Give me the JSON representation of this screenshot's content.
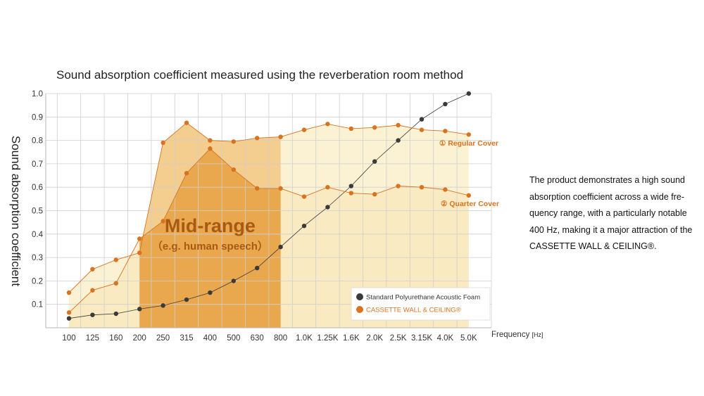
{
  "chart_data": {
    "type": "line",
    "title": "Sound absorption coefficient measured using the reverberation room method",
    "ylabel": "Sound absorption coefficient",
    "xlabel": "Frequency",
    "xlabel_unit": "[Hz]",
    "ylim": [
      0,
      1.0
    ],
    "yticks": [
      "0.1",
      "0.2",
      "0.3",
      "0.4",
      "0.5",
      "0.6",
      "0.7",
      "0.8",
      "0.9",
      "1.0"
    ],
    "ytick_values": [
      0.1,
      0.2,
      0.3,
      0.4,
      0.5,
      0.6,
      0.7,
      0.8,
      0.9,
      1.0
    ],
    "categories": [
      "100",
      "125",
      "160",
      "200",
      "250",
      "315",
      "400",
      "500",
      "630",
      "800",
      "1.0K",
      "1.25K",
      "1.6K",
      "2.0K",
      "2.5K",
      "3.15K",
      "4.0K",
      "5.0K"
    ],
    "series": [
      {
        "name": "Standard Polyurethane Acoustic Foam",
        "color": "#3a3a3a",
        "values": [
          0.04,
          0.055,
          0.06,
          0.08,
          0.095,
          0.12,
          0.15,
          0.2,
          0.255,
          0.345,
          0.435,
          0.515,
          0.605,
          0.71,
          0.8,
          0.89,
          0.955,
          1.0
        ]
      },
      {
        "name": "① Regular Cover",
        "color": "#d9731f",
        "values": [
          0.15,
          0.25,
          0.29,
          0.32,
          0.79,
          0.875,
          0.8,
          0.795,
          0.81,
          0.815,
          0.845,
          0.87,
          0.85,
          0.855,
          0.865,
          0.845,
          0.84,
          0.825
        ]
      },
      {
        "name": "② Quarter Cover",
        "color": "#d9731f",
        "values": [
          0.065,
          0.16,
          0.19,
          0.38,
          0.455,
          0.66,
          0.765,
          0.675,
          0.595,
          0.595,
          0.56,
          0.6,
          0.575,
          0.57,
          0.605,
          0.6,
          0.59,
          0.565
        ]
      }
    ],
    "highlight": {
      "label": "Mid-range",
      "sublabel": "（e.g. human speech）",
      "from": "200",
      "to": "800"
    },
    "series_labels": [
      "① Regular Cover",
      "② Quarter Cover"
    ],
    "legend": {
      "placement": "bottom-right",
      "items": [
        {
          "label": "Standard Polyurethane Acoustic Foam",
          "color": "#3a3a3a"
        },
        {
          "label": "CASSETTE WALL & CEILING®",
          "color": "#d9731f"
        }
      ]
    },
    "colors": {
      "grid": "#cfcfcf",
      "axis": "#b5b5b5",
      "light_fill": "#fbf1d3",
      "highlight_fill": "#eaa84e",
      "highlight_fill_upper": "#f3ce8f",
      "quarter_fill": "#f8e3b4",
      "orange": "#d9731f",
      "dark": "#3a3a3a"
    }
  },
  "description": {
    "text": "The product demonstrates a high sound absorption coefficient across a wide fre- quency range, with a particularly notable 400 Hz, making it a major attraction of the CASSETTE WALL & CEILING®."
  }
}
